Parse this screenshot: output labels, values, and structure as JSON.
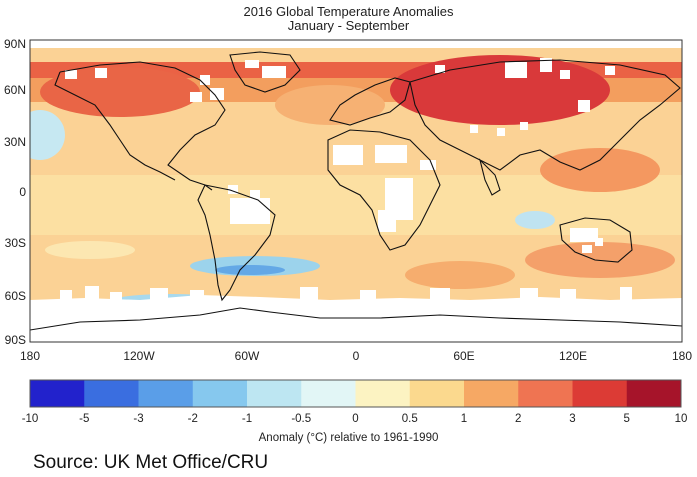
{
  "title": "2016 Global Temperature Anomalies",
  "subtitle": "January - September",
  "lat_labels": [
    "90N",
    "60N",
    "30N",
    "0",
    "30S",
    "60S",
    "90S"
  ],
  "lon_labels": [
    "180",
    "120W",
    "60W",
    "0",
    "60E",
    "120E",
    "180"
  ],
  "colorbar": {
    "ticks": [
      "-10",
      "-5",
      "-3",
      "-2",
      "-1",
      "-0.5",
      "0",
      "0.5",
      "1",
      "2",
      "3",
      "5",
      "10"
    ],
    "colors": [
      "#2222cc",
      "#3a6ee0",
      "#5a9ee8",
      "#86c8ee",
      "#bde6f2",
      "#e2f6f6",
      "#fcf3c2",
      "#fbd98e",
      "#f6a864",
      "#ef7452",
      "#dc3b35",
      "#a6142a"
    ],
    "caption": "Anomaly (°C) relative to 1961-1990"
  },
  "source": "Source: UK Met Office/CRU",
  "legend_levels": {
    "ocean_bg": "#fbd295",
    "nodata": "#ffffff"
  }
}
